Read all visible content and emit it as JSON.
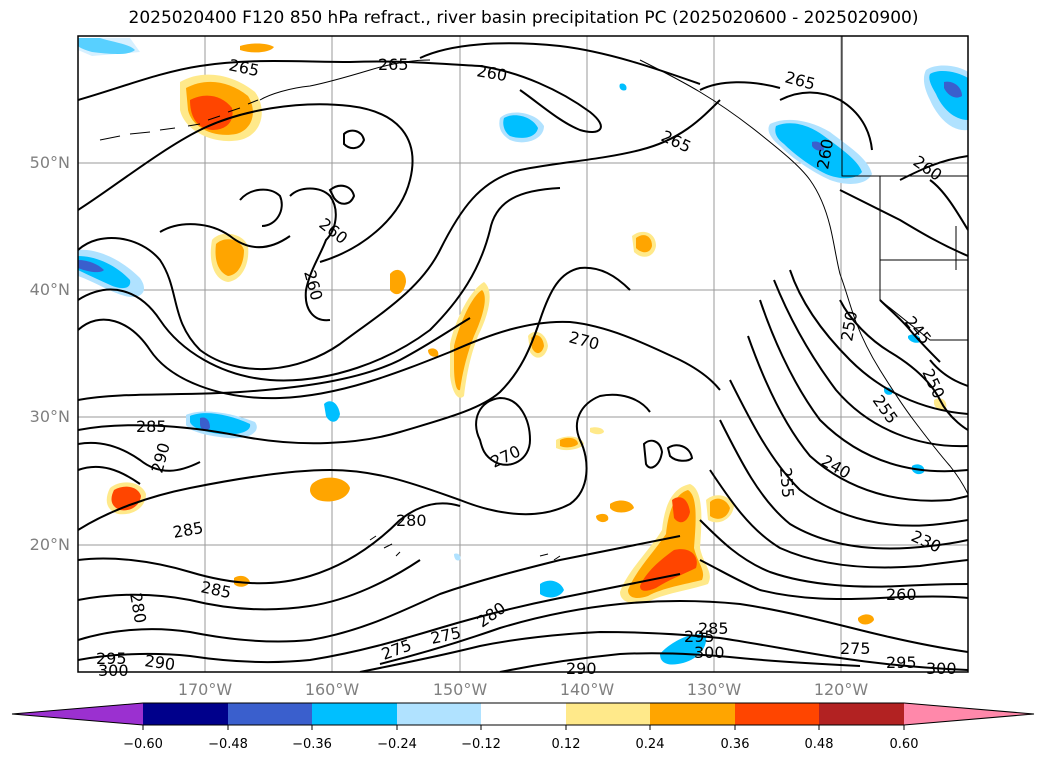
{
  "title": "2025020400 F120 850 hPa refract., river basin precipitation PC (2025020600 - 2025020900)",
  "map": {
    "lat_labels": [
      "50°N",
      "40°N",
      "30°N",
      "20°N"
    ],
    "lon_labels": [
      "170°W",
      "160°W",
      "150°W",
      "140°W",
      "130°W",
      "120°W"
    ],
    "contour_labels": [
      "265",
      "265",
      "260",
      "265",
      "265",
      "260",
      "260",
      "260",
      "260",
      "270",
      "285",
      "290",
      "270",
      "280",
      "285",
      "285",
      "280",
      "275",
      "275",
      "280",
      "290",
      "295",
      "290",
      "285",
      "300",
      "295",
      "300",
      "250",
      "245",
      "250",
      "255",
      "240",
      "255",
      "230",
      "260",
      "275",
      "295",
      "300"
    ],
    "colors": {
      "grid": "#9a9a9a",
      "contour": "#000000",
      "coast": "#000000"
    }
  },
  "colorbar": {
    "ticks": [
      "−0.60",
      "−0.48",
      "−0.36",
      "−0.24",
      "−0.12",
      "0.12",
      "0.24",
      "0.36",
      "0.48",
      "0.60"
    ],
    "colors": [
      "#9b30d0",
      "#00008b",
      "#3a5fcd",
      "#00bfff",
      "#b0e2ff",
      "#ffffff",
      "#ffe98a",
      "#ffa500",
      "#ff4500",
      "#b22222",
      "#ff88aa"
    ]
  }
}
